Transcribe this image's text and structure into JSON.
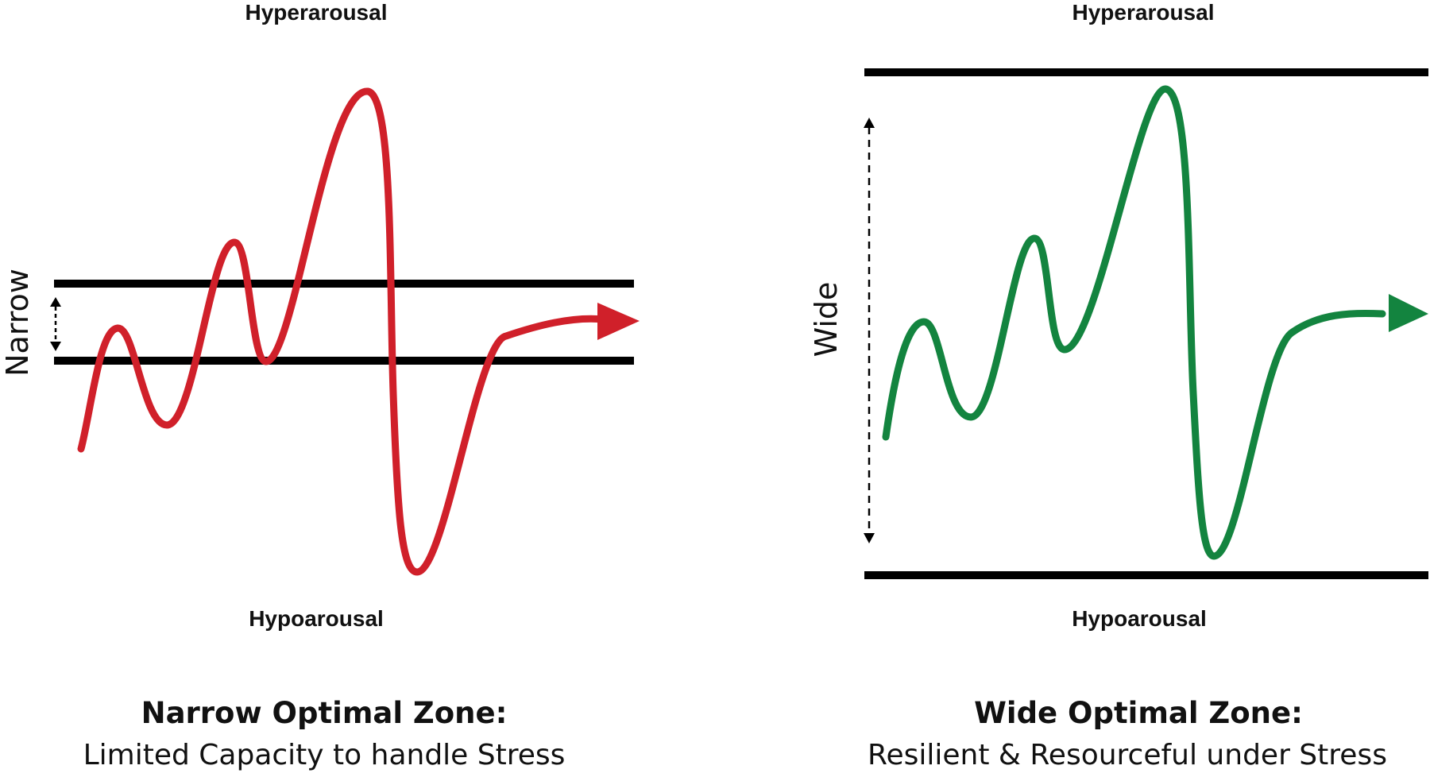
{
  "left": {
    "top_label": "Hyperarousal",
    "bottom_label": "Hypoarousal",
    "side_label": "Narrow",
    "caption_title": "Narrow Optimal Zone:",
    "caption_subtitle": "Limited Capacity to handle Stress",
    "curve_color": "#d0202a"
  },
  "right": {
    "top_label": "Hyperarousal",
    "bottom_label": "Hypoarousal",
    "side_label": "Wide",
    "caption_title": "Wide Optimal Zone:",
    "caption_subtitle": "Resilient & Resourceful under Stress",
    "curve_color": "#13843f"
  }
}
